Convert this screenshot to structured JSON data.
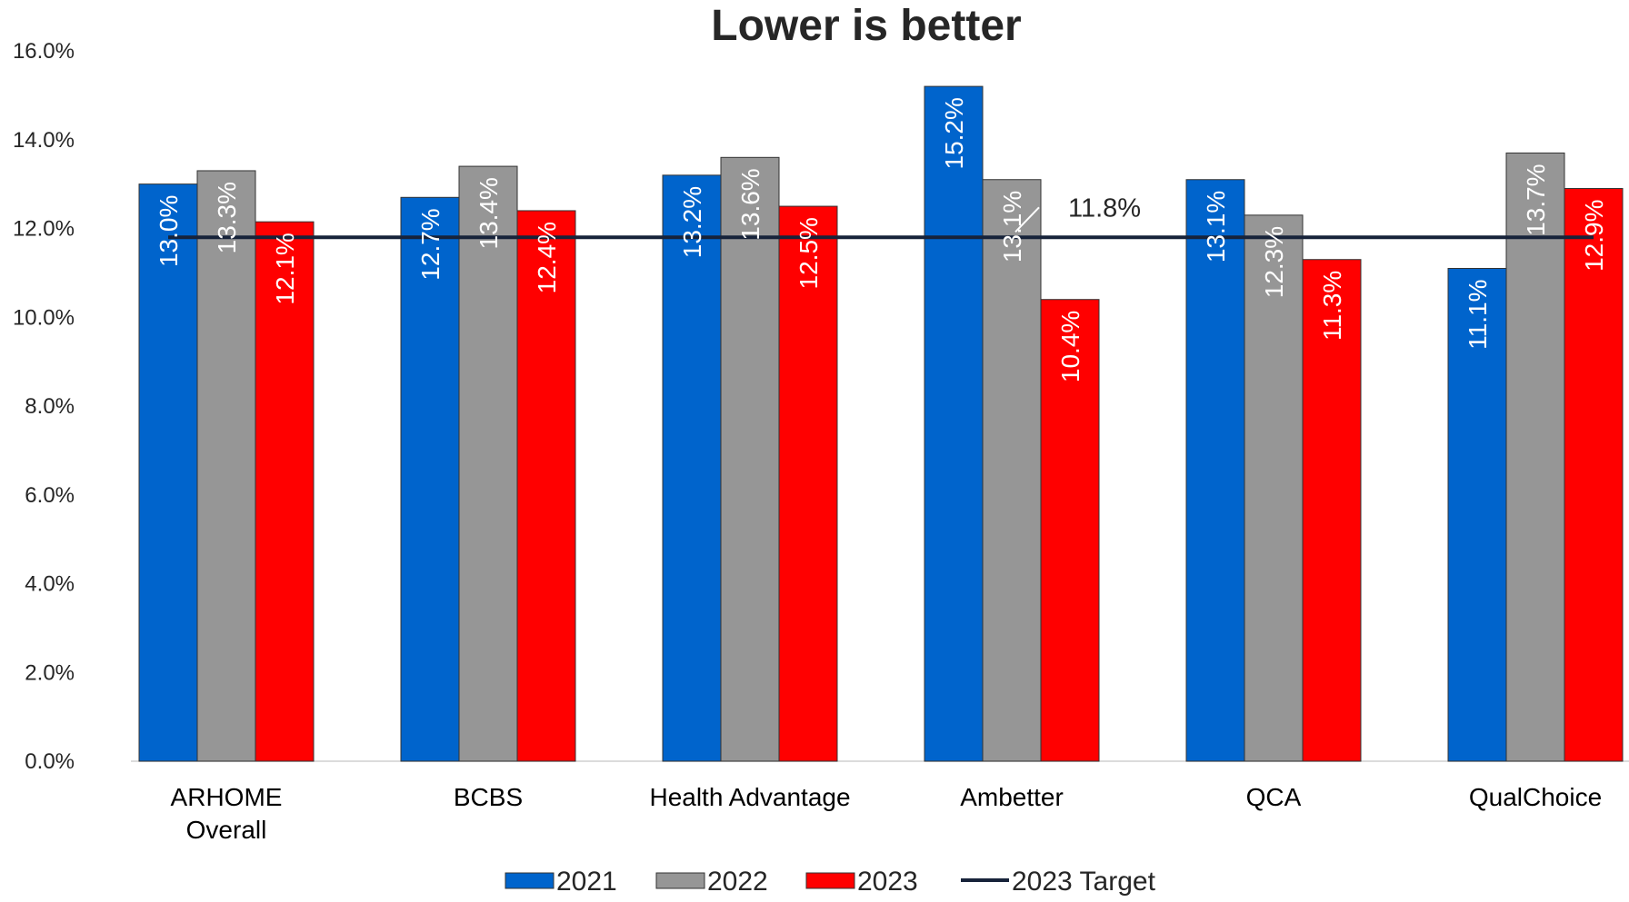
{
  "chart_data": {
    "type": "bar",
    "title": "Lower is better",
    "categories": [
      [
        "ARHOME",
        "Overall"
      ],
      [
        "BCBS"
      ],
      [
        "Health Advantage"
      ],
      [
        "Ambetter"
      ],
      [
        "QCA"
      ],
      [
        "QualChoice"
      ]
    ],
    "series": [
      {
        "name": "2021",
        "color": "#0064CC",
        "values": [
          13.0,
          12.7,
          13.2,
          15.2,
          13.1,
          11.1
        ],
        "labels": [
          "13.0%",
          "12.7%",
          "13.2%",
          "15.2%",
          "13.1%",
          "11.1%"
        ]
      },
      {
        "name": "2022",
        "color": "#969696",
        "values": [
          13.3,
          13.4,
          13.6,
          13.1,
          12.3,
          13.7
        ],
        "labels": [
          "13.3%",
          "13.4%",
          "13.6%",
          "13.1%",
          "12.3%",
          "13.7%"
        ]
      },
      {
        "name": "2023",
        "color": "#FF0000",
        "values": [
          12.15,
          12.4,
          12.5,
          10.4,
          11.3,
          12.9
        ],
        "labels": [
          "12.1%",
          "12.4%",
          "12.5%",
          "10.4%",
          "11.3%",
          "12.9%"
        ]
      }
    ],
    "target": {
      "name": "2023 Target",
      "value": 11.8,
      "label": "11.8%",
      "color": "#17233A"
    },
    "ylim": [
      0,
      16
    ],
    "yticks": [
      0,
      2,
      4,
      6,
      8,
      10,
      12,
      14,
      16
    ],
    "ytick_labels": [
      "0.0%",
      "2.0%",
      "4.0%",
      "6.0%",
      "8.0%",
      "10.0%",
      "12.0%",
      "14.0%",
      "16.0%"
    ],
    "xlabel": "",
    "ylabel": "",
    "grid": false,
    "legend_position": "bottom"
  }
}
